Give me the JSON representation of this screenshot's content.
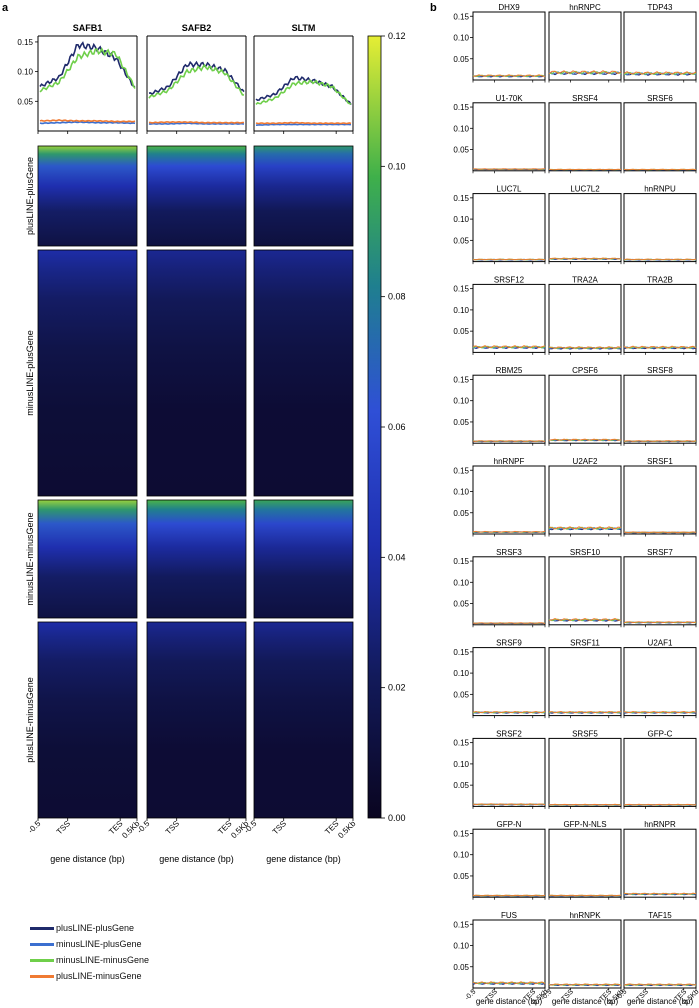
{
  "panel_a": {
    "letter": "a",
    "columns": [
      "SAFB1",
      "SAFB2",
      "SLTM"
    ],
    "row_labels": [
      "plusLINE-plusGene",
      "minusLINE-plusGene",
      "minusLINE-minusGene",
      "plusLINE-minusGene"
    ],
    "x_ticks": [
      "-0.5",
      "TSS",
      "TES",
      "0.5Kb"
    ],
    "xlabel": "gene distance (bp)",
    "profile_yticks": [
      "0.15",
      "0.10",
      "0.05"
    ],
    "colorbar_ticks": [
      "0.12",
      "0.10",
      "0.08",
      "0.06",
      "0.04",
      "0.02",
      "0.00"
    ]
  },
  "panel_b": {
    "letter": "b",
    "yticks": [
      "0.15",
      "0.10",
      "0.05"
    ],
    "x_ticks": [
      "-0.5",
      "TSS",
      "TES",
      "0.5Kb"
    ],
    "xlabel": "gene distance (bp)"
  },
  "colors": {
    "plusLINE-plusGene": "#1f2a6b",
    "minusLINE-plusGene": "#3b6fd0",
    "minusLINE-minusGene": "#6fcf4a",
    "plusLINE-minusGene": "#f07a32"
  },
  "legend": [
    {
      "label": "plusLINE-plusGene",
      "color": "#1f2a6b"
    },
    {
      "label": "minusLINE-plusGene",
      "color": "#3b6fd0"
    },
    {
      "label": "minusLINE-minusGene",
      "color": "#6fcf4a"
    },
    {
      "label": "plusLINE-minusGene",
      "color": "#f07a32"
    }
  ],
  "chart_data": [
    {
      "type": "line",
      "panel": "a-profile",
      "x": [
        "-0.5",
        "TSS",
        "TES",
        "0.5Kb"
      ],
      "ylim": [
        0,
        0.16
      ],
      "profiles": [
        {
          "title": "SAFB1",
          "series": [
            {
              "name": "plusLINE-plusGene",
              "values": [
                0.075,
                0.09,
                0.145,
                0.14,
                0.122,
                0.072
              ]
            },
            {
              "name": "minusLINE-plusGene",
              "values": [
                0.013,
                0.014,
                0.015,
                0.014,
                0.014,
                0.013
              ]
            },
            {
              "name": "minusLINE-minusGene",
              "values": [
                0.068,
                0.082,
                0.125,
                0.135,
                0.13,
                0.073
              ]
            },
            {
              "name": "plusLINE-minusGene",
              "values": [
                0.017,
                0.018,
                0.017,
                0.017,
                0.016,
                0.016
              ]
            }
          ]
        },
        {
          "title": "SAFB2",
          "series": [
            {
              "name": "plusLINE-plusGene",
              "values": [
                0.062,
                0.074,
                0.112,
                0.112,
                0.102,
                0.065
              ]
            },
            {
              "name": "minusLINE-plusGene",
              "values": [
                0.012,
                0.012,
                0.013,
                0.012,
                0.012,
                0.012
              ]
            },
            {
              "name": "minusLINE-minusGene",
              "values": [
                0.057,
                0.068,
                0.1,
                0.108,
                0.098,
                0.06
              ]
            },
            {
              "name": "plusLINE-minusGene",
              "values": [
                0.014,
                0.015,
                0.015,
                0.014,
                0.014,
                0.014
              ]
            }
          ]
        },
        {
          "title": "SLTM",
          "series": [
            {
              "name": "plusLINE-plusGene",
              "values": [
                0.052,
                0.062,
                0.09,
                0.085,
                0.075,
                0.045
              ]
            },
            {
              "name": "minusLINE-plusGene",
              "values": [
                0.01,
                0.011,
                0.011,
                0.011,
                0.011,
                0.011
              ]
            },
            {
              "name": "minusLINE-minusGene",
              "values": [
                0.045,
                0.055,
                0.08,
                0.083,
                0.075,
                0.044
              ]
            },
            {
              "name": "plusLINE-minusGene",
              "values": [
                0.013,
                0.013,
                0.014,
                0.013,
                0.013,
                0.013
              ]
            }
          ]
        }
      ]
    },
    {
      "type": "heatmap",
      "panel": "a-heatmap",
      "columns": [
        "SAFB1",
        "SAFB2",
        "SLTM"
      ],
      "rows": [
        "plusLINE-plusGene",
        "minusLINE-plusGene",
        "minusLINE-minusGene",
        "plusLINE-minusGene"
      ],
      "top_intensity": [
        [
          0.11,
          0.1,
          0.09
        ],
        [
          0.04,
          0.035,
          0.035
        ],
        [
          0.11,
          0.1,
          0.095
        ],
        [
          0.04,
          0.035,
          0.035
        ]
      ],
      "colorbar_range": [
        0,
        0.12
      ]
    },
    {
      "type": "line",
      "panel": "b",
      "ylim": [
        0,
        0.16
      ],
      "small_multiples": [
        {
          "title": "DHX9",
          "level": 0.01
        },
        {
          "title": "hnRNPC",
          "level": 0.018
        },
        {
          "title": "TDP43",
          "level": 0.016
        },
        {
          "title": "U1-70K",
          "level": 0.004
        },
        {
          "title": "SRSF4",
          "level": 0.003
        },
        {
          "title": "SRSF6",
          "level": 0.003
        },
        {
          "title": "LUC7L",
          "level": 0.005
        },
        {
          "title": "LUC7L2",
          "level": 0.007
        },
        {
          "title": "hnRNPU",
          "level": 0.005
        },
        {
          "title": "SRSF12",
          "level": 0.013
        },
        {
          "title": "TRA2A",
          "level": 0.011
        },
        {
          "title": "TRA2B",
          "level": 0.012
        },
        {
          "title": "RBM25",
          "level": 0.005
        },
        {
          "title": "CPSF6",
          "level": 0.008
        },
        {
          "title": "SRSF8",
          "level": 0.005
        },
        {
          "title": "hnRNPF",
          "level": 0.005
        },
        {
          "title": "U2AF2",
          "level": 0.014
        },
        {
          "title": "SRSF1",
          "level": 0.004
        },
        {
          "title": "SRSF3",
          "level": 0.004
        },
        {
          "title": "SRSF10",
          "level": 0.012
        },
        {
          "title": "SRSF7",
          "level": 0.006
        },
        {
          "title": "SRSF9",
          "level": 0.008
        },
        {
          "title": "SRSF11",
          "level": 0.008
        },
        {
          "title": "U2AF1",
          "level": 0.008
        },
        {
          "title": "SRSF2",
          "level": 0.005
        },
        {
          "title": "SRSF5",
          "level": 0.004
        },
        {
          "title": "GFP-C",
          "level": 0.004
        },
        {
          "title": "GFP-N",
          "level": 0.004
        },
        {
          "title": "GFP-N-NLS",
          "level": 0.004
        },
        {
          "title": "hnRNPR",
          "level": 0.008
        },
        {
          "title": "FUS",
          "level": 0.012
        },
        {
          "title": "hnRNPK",
          "level": 0.008
        },
        {
          "title": "TAF15",
          "level": 0.008
        }
      ]
    }
  ]
}
